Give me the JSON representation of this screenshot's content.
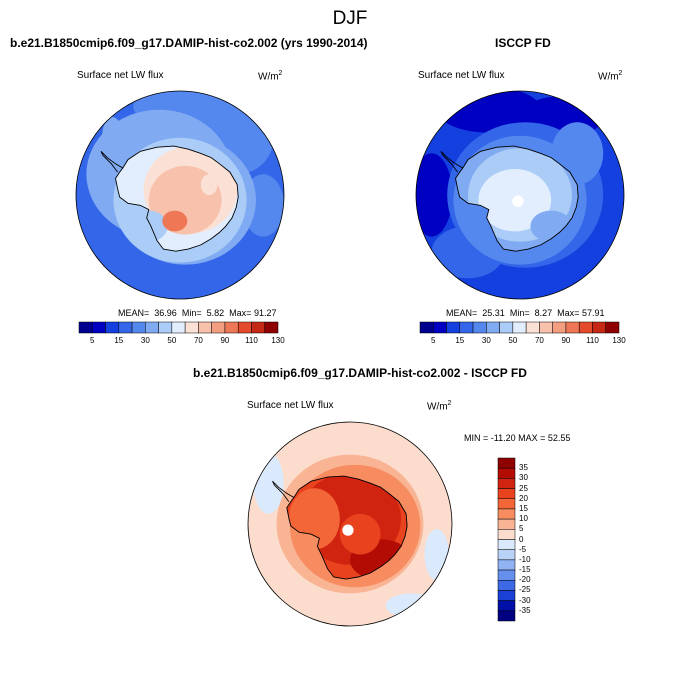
{
  "figure": {
    "title": "DJF"
  },
  "chart_data": [
    {
      "type": "heatmap",
      "panel_header": "b.e21.B1850cmip6.f09_g17.DAMIP-hist-co2.002 (yrs 1990-2014)",
      "variable": "Surface net LW flux",
      "units": "W/m",
      "units_exp": "2",
      "stats": {
        "mean_label": "MEAN=",
        "mean": "36.96",
        "min_label": "Min=",
        "min": "5.82",
        "max_label": "Max=",
        "max": "91.27"
      },
      "colorbar_levels": [
        5,
        10,
        15,
        20,
        30,
        40,
        50,
        60,
        70,
        80,
        90,
        100,
        110,
        120,
        130
      ],
      "colorbar_ticks": [
        "5",
        "15",
        "30",
        "50",
        "70",
        "90",
        "110",
        "130"
      ],
      "field": {
        "ocean_mid": 30,
        "ocean_north": 25,
        "antarctic_coast": 45,
        "antarctic_interior": 75,
        "peninsula_peak": 91
      }
    },
    {
      "type": "heatmap",
      "panel_header": "ISCCP FD",
      "variable": "Surface net LW flux",
      "units": "W/m",
      "units_exp": "2",
      "stats": {
        "mean_label": "MEAN=",
        "mean": "25.31",
        "min_label": "Min=",
        "min": "8.27",
        "max_label": "Max=",
        "max": "57.91"
      },
      "colorbar_levels": [
        5,
        10,
        15,
        20,
        30,
        40,
        50,
        60,
        70,
        80,
        90,
        100,
        110,
        120,
        130
      ],
      "colorbar_ticks": [
        "5",
        "15",
        "30",
        "50",
        "70",
        "90",
        "110",
        "130"
      ],
      "field": {
        "ocean_mid": 22,
        "ocean_north": 15,
        "antarctic_coast": 35,
        "antarctic_interior": 48
      }
    },
    {
      "type": "heatmap",
      "panel_header": "b.e21.B1850cmip6.f09_g17.DAMIP-hist-co2.002 - ISCCP FD",
      "variable": "Surface net LW flux",
      "units": "W/m",
      "units_exp": "2",
      "stats_text": "MIN = -11.20  MAX =  52.55",
      "colorbar_levels": [
        -35,
        -30,
        -25,
        -20,
        -15,
        -10,
        -5,
        0,
        5,
        10,
        15,
        20,
        25,
        30,
        35
      ],
      "colorbar_ticks": [
        "35",
        "30",
        "25",
        "20",
        "15",
        "10",
        "5",
        "0",
        "-5",
        "-10",
        "-15",
        "-20",
        "-25",
        "-30",
        "-35"
      ],
      "field": {
        "ocean_mid": 2,
        "antarctic_coast": 15,
        "antarctic_interior": 28,
        "dronning_maud": 33
      }
    }
  ],
  "palettes": {
    "absolute": [
      "#00008f",
      "#0000c2",
      "#1540e0",
      "#3366e8",
      "#5588ee",
      "#80aaf2",
      "#aaccf7",
      "#e2eefd",
      "#fbe1d5",
      "#f7c1ab",
      "#f39e80",
      "#ee7755",
      "#e44a2c",
      "#c52814",
      "#8f0000"
    ],
    "difference": [
      "#8f0000",
      "#b20c04",
      "#d02410",
      "#e8421e",
      "#f26638",
      "#f68c60",
      "#f9b494",
      "#fcdccc",
      "#dbe9fc",
      "#b9d3f8",
      "#8fb3f3",
      "#6690ee",
      "#3d68e6",
      "#1a40d5",
      "#0010a8",
      "#000080"
    ]
  }
}
